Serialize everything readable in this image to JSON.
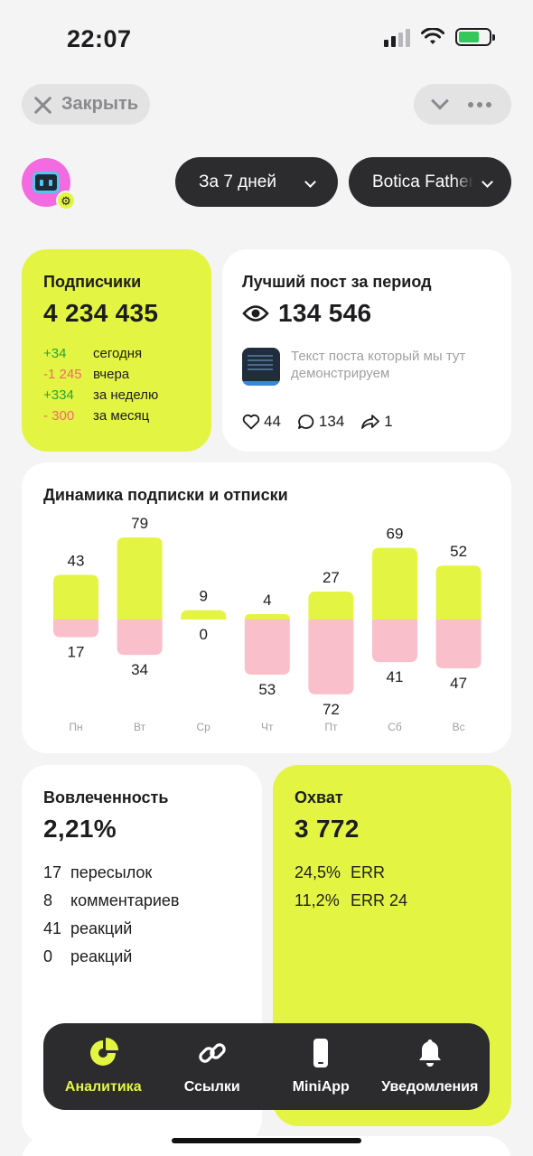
{
  "status_bar": {
    "time": "22:07"
  },
  "header": {
    "close_label": "Закрыть"
  },
  "filters": {
    "period": "За 7 дней",
    "bot": "Botica Father"
  },
  "subscribers": {
    "title": "Подписчики",
    "total": "4 234 435",
    "rows": [
      {
        "delta": "+34",
        "label": "сегодня",
        "sign": "pos"
      },
      {
        "delta": "-1 245",
        "label": "вчера",
        "sign": "neg"
      },
      {
        "delta": "+334",
        "label": "за неделю",
        "sign": "pos"
      },
      {
        "delta": "- 300",
        "label": "за месяц",
        "sign": "neg"
      }
    ]
  },
  "best_post": {
    "title": "Лучший пост за период",
    "views": "134 546",
    "text": "Текст поста который мы тут демонстрируем",
    "likes": "44",
    "comments": "134",
    "shares": "1"
  },
  "dynamics": {
    "title": "Динамика подписки и отписки"
  },
  "chart_data": {
    "type": "bar",
    "title": "Динамика подписки и отписки",
    "categories": [
      "Пн",
      "Вт",
      "Ср",
      "Чт",
      "Пт",
      "Сб",
      "Вс"
    ],
    "series": [
      {
        "values": [
          43,
          79,
          9,
          4,
          27,
          69,
          52
        ]
      },
      {
        "values": [
          17,
          34,
          0,
          53,
          72,
          41,
          47
        ]
      }
    ],
    "colors": {
      "subscribe": "#e3f542",
      "unsubscribe": "#f9bfca"
    },
    "stacked": "diverging"
  },
  "engagement": {
    "title": "Вовлеченность",
    "value": "2,21%",
    "rows": [
      {
        "num": "17",
        "label": "пересылок"
      },
      {
        "num": "8",
        "label": "комментариев"
      },
      {
        "num": "41",
        "label": "реакций"
      },
      {
        "num": "0",
        "label": "реакций"
      }
    ]
  },
  "reach": {
    "title": "Охват",
    "value": "3 772",
    "rows": [
      {
        "num": "24,5%",
        "label": "ERR"
      },
      {
        "num": "11,2%",
        "label": "ERR 24"
      }
    ]
  },
  "tabbar": {
    "items": [
      {
        "label": "Аналитика",
        "icon": "pie-chart-icon",
        "active": true
      },
      {
        "label": "Ссылки",
        "icon": "link-icon",
        "active": false
      },
      {
        "label": "MiniApp",
        "icon": "phone-icon",
        "active": false
      },
      {
        "label": "Уведомления",
        "icon": "bell-icon",
        "active": false
      }
    ]
  },
  "colors": {
    "accent": "#e3f542",
    "dark": "#2c2c2e",
    "positive": "#2aa335",
    "negative": "#f06a6a"
  }
}
